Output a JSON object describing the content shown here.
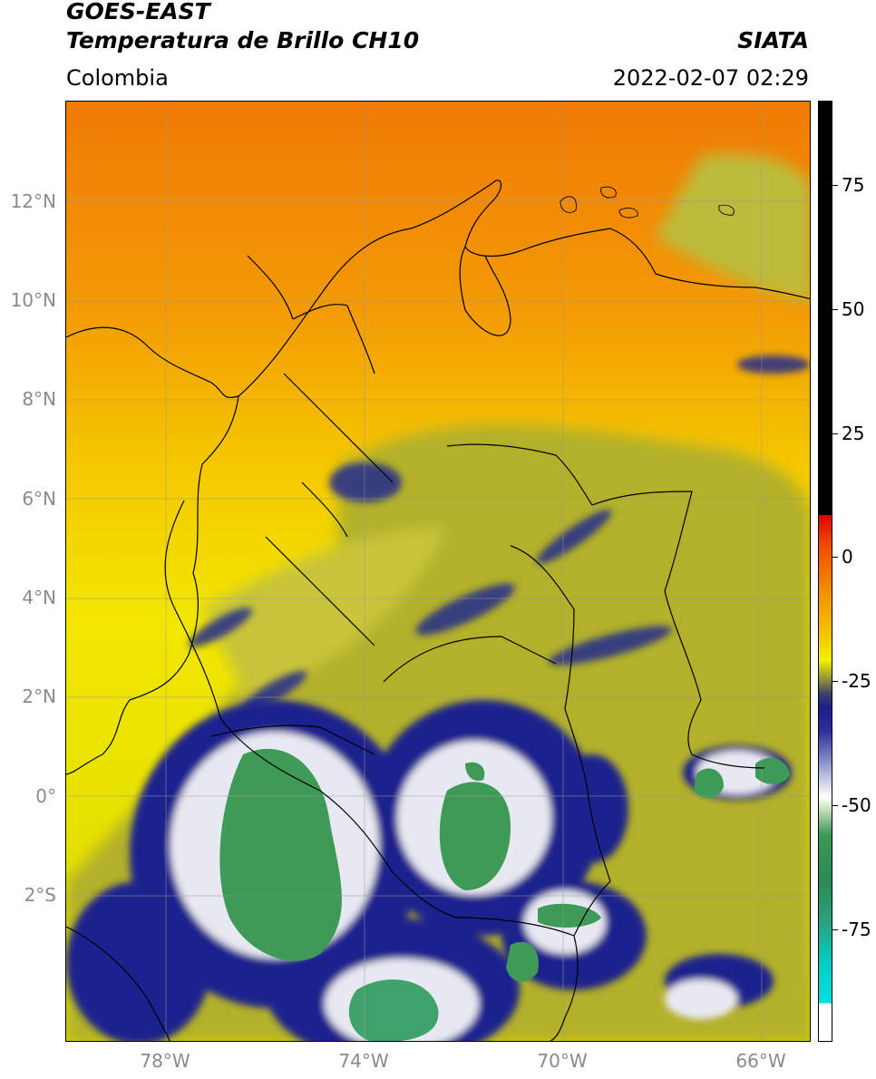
{
  "header": {
    "line1": "GOES-EAST",
    "line2": "Temperatura de Brillo CH10",
    "brand": "SIATA",
    "region": "Colombia",
    "timestamp": "2022-02-07 02:29"
  },
  "map": {
    "lat_labels": [
      "12°N",
      "10°N",
      "8°N",
      "6°N",
      "4°N",
      "2°N",
      "0°",
      "2°S"
    ],
    "lon_labels": [
      "78°W",
      "74°W",
      "70°W",
      "66°W"
    ]
  },
  "colorbar": {
    "ticks": [
      "75",
      "50",
      "25",
      "0",
      "-25",
      "-50",
      "-75"
    ]
  },
  "colors": {
    "warm_top": "#f07800",
    "mid": "#f5c800",
    "yellow": "#f2f200",
    "olive": "#a9a828",
    "navy": "#1a1f8a",
    "white": "#ffffff",
    "green": "#3c9a55",
    "cyan": "#00d9d9"
  }
}
